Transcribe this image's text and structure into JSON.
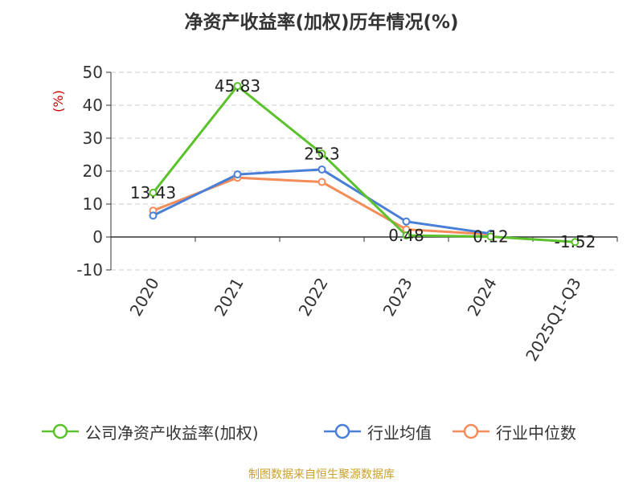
{
  "title": "净资产收益率(加权)历年情况(%)",
  "source_note": "制图数据来自恒生聚源数据库",
  "chart_data": {
    "type": "line",
    "title": "净资产收益率(加权)历年情况(%)",
    "ylabel": "(%)",
    "xlabel": "",
    "categories": [
      "2020",
      "2021",
      "2022",
      "2023",
      "2024",
      "2025Q1-Q3"
    ],
    "ylim": [
      -10,
      50
    ],
    "yticks": [
      -10,
      0,
      10,
      20,
      30,
      40,
      50
    ],
    "grid": true,
    "legend_position": "bottom",
    "series": [
      {
        "name": "公司净资产收益率(加权)",
        "color": "#5cc22c",
        "values": [
          13.43,
          45.83,
          25.3,
          0.48,
          0.12,
          -1.52
        ],
        "labels": [
          "13.43",
          "45.83",
          "25.3",
          "0.48",
          "0.12",
          "-1.52"
        ]
      },
      {
        "name": "行业均值",
        "color": "#4a7fd8",
        "values": [
          6.5,
          19.0,
          20.5,
          4.7,
          1.0,
          null
        ]
      },
      {
        "name": "行业中位数",
        "color": "#f48c5a",
        "values": [
          8.0,
          18.0,
          16.7,
          2.3,
          0.8,
          null
        ]
      }
    ]
  }
}
